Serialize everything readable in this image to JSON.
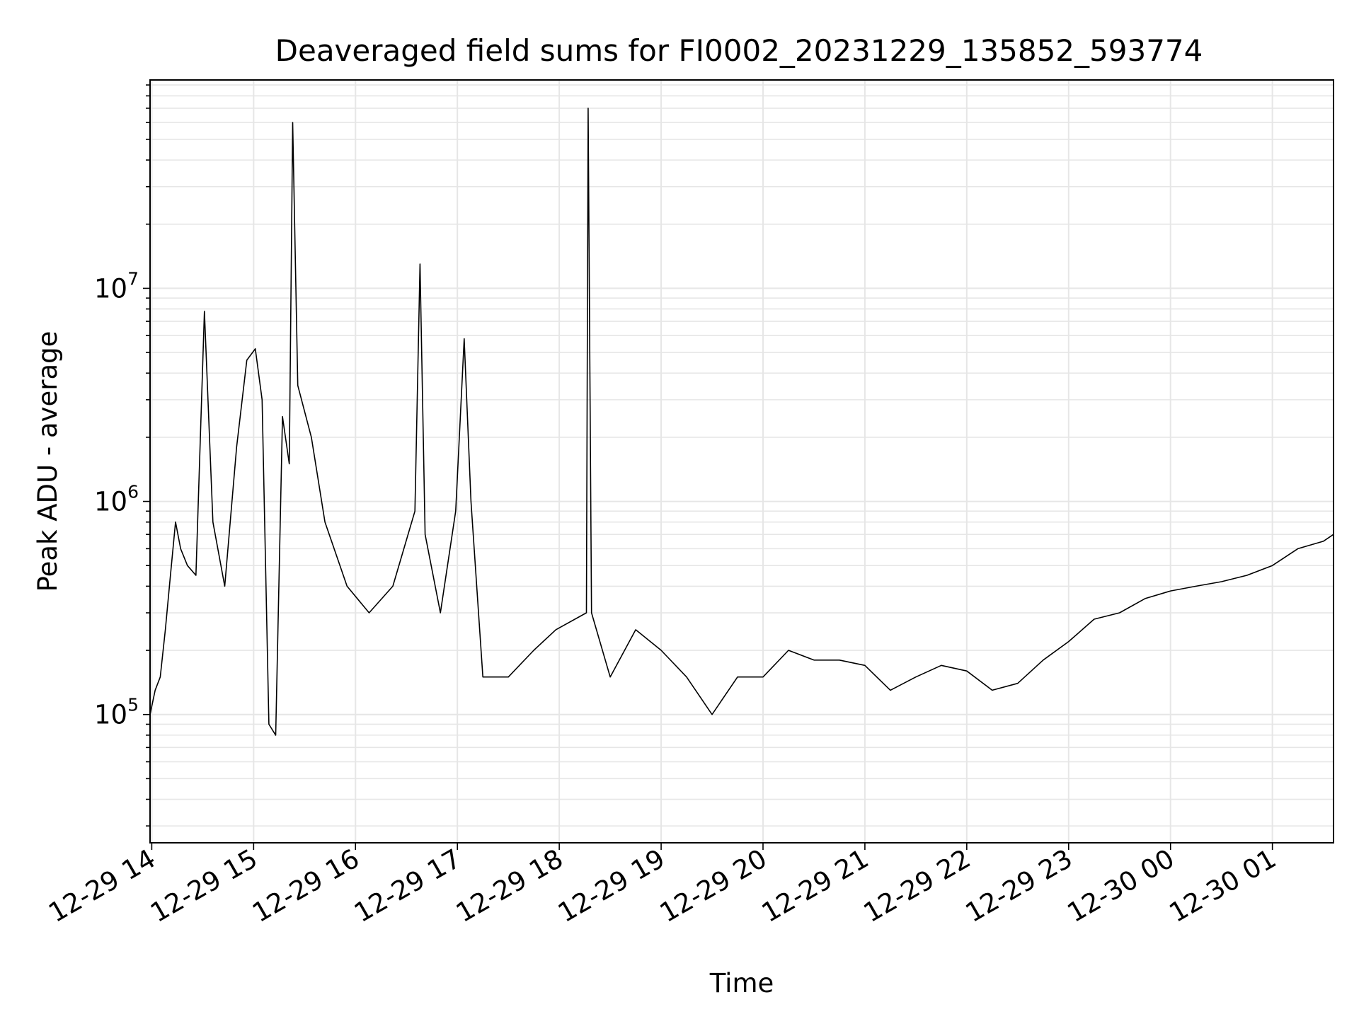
{
  "chart_data": {
    "type": "line",
    "title": "Deaveraged field sums for FI0002_20231229_135852_593774",
    "xlabel": "Time",
    "ylabel": "Peak ADU - average",
    "yscale": "log",
    "ylim": [
      25000,
      95000000
    ],
    "xlim": [
      "12-29 13:59",
      "12-30 01:36"
    ],
    "grid": true,
    "x_ticks": [
      "12-29 14",
      "12-29 15",
      "12-29 16",
      "12-29 17",
      "12-29 18",
      "12-29 19",
      "12-29 20",
      "12-29 21",
      "12-29 22",
      "12-29 23",
      "12-30 00",
      "12-30 01"
    ],
    "y_ticks": [
      {
        "base": "10",
        "exp": "5",
        "value": 100000
      },
      {
        "base": "10",
        "exp": "6",
        "value": 1000000
      },
      {
        "base": "10",
        "exp": "7",
        "value": 10000000
      }
    ],
    "series": [
      {
        "color": "#000000",
        "points": [
          [
            "12-29 13:59",
            100000
          ],
          [
            "12-29 14:02",
            130000
          ],
          [
            "12-29 14:05",
            150000
          ],
          [
            "12-29 14:08",
            250000
          ],
          [
            "12-29 14:11",
            450000
          ],
          [
            "12-29 14:14",
            800000
          ],
          [
            "12-29 14:17",
            600000
          ],
          [
            "12-29 14:21",
            500000
          ],
          [
            "12-29 14:26",
            450000
          ],
          [
            "12-29 14:31",
            7800000
          ],
          [
            "12-29 14:36",
            800000
          ],
          [
            "12-29 14:43",
            400000
          ],
          [
            "12-29 14:50",
            1800000
          ],
          [
            "12-29 14:56",
            4600000
          ],
          [
            "12-29 15:01",
            5200000
          ],
          [
            "12-29 15:05",
            3000000
          ],
          [
            "12-29 15:09",
            90000
          ],
          [
            "12-29 15:13",
            80000
          ],
          [
            "12-29 15:17",
            2500000
          ],
          [
            "12-29 15:21",
            1500000
          ],
          [
            "12-29 15:23",
            60000000
          ],
          [
            "12-29 15:26",
            3500000
          ],
          [
            "12-29 15:34",
            2000000
          ],
          [
            "12-29 15:42",
            800000
          ],
          [
            "12-29 15:55",
            400000
          ],
          [
            "12-29 16:08",
            300000
          ],
          [
            "12-29 16:22",
            400000
          ],
          [
            "12-29 16:35",
            900000
          ],
          [
            "12-29 16:38",
            13000000
          ],
          [
            "12-29 16:41",
            700000
          ],
          [
            "12-29 16:50",
            300000
          ],
          [
            "12-29 16:59",
            900000
          ],
          [
            "12-29 17:04",
            5800000
          ],
          [
            "12-29 17:08",
            1000000
          ],
          [
            "12-29 17:15",
            150000
          ],
          [
            "12-29 17:30",
            150000
          ],
          [
            "12-29 17:45",
            200000
          ],
          [
            "12-29 17:58",
            250000
          ],
          [
            "12-29 18:16",
            300000
          ],
          [
            "12-29 18:17",
            70000000
          ],
          [
            "12-29 18:19",
            300000
          ],
          [
            "12-29 18:30",
            150000
          ],
          [
            "12-29 18:45",
            250000
          ],
          [
            "12-29 19:00",
            200000
          ],
          [
            "12-29 19:15",
            150000
          ],
          [
            "12-29 19:30",
            100000
          ],
          [
            "12-29 19:45",
            150000
          ],
          [
            "12-29 20:00",
            150000
          ],
          [
            "12-29 20:15",
            200000
          ],
          [
            "12-29 20:30",
            180000
          ],
          [
            "12-29 20:45",
            180000
          ],
          [
            "12-29 21:00",
            170000
          ],
          [
            "12-29 21:15",
            130000
          ],
          [
            "12-29 21:30",
            150000
          ],
          [
            "12-29 21:45",
            170000
          ],
          [
            "12-29 22:00",
            160000
          ],
          [
            "12-29 22:15",
            130000
          ],
          [
            "12-29 22:30",
            140000
          ],
          [
            "12-29 22:45",
            180000
          ],
          [
            "12-29 23:00",
            220000
          ],
          [
            "12-29 23:15",
            280000
          ],
          [
            "12-29 23:30",
            300000
          ],
          [
            "12-29 23:45",
            350000
          ],
          [
            "12-30 00:00",
            380000
          ],
          [
            "12-30 00:15",
            400000
          ],
          [
            "12-30 00:30",
            420000
          ],
          [
            "12-30 00:45",
            450000
          ],
          [
            "12-30 01:00",
            500000
          ],
          [
            "12-30 01:15",
            600000
          ],
          [
            "12-30 01:30",
            650000
          ],
          [
            "12-30 01:36",
            700000
          ]
        ]
      }
    ]
  }
}
